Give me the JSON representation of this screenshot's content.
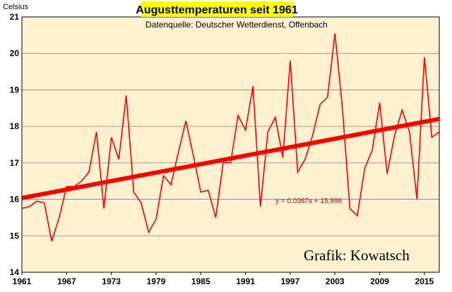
{
  "chart_data": {
    "type": "line",
    "title": "Augusttemperaturen seit 1961",
    "subtitle": "Datenquelle: Deutscher Wetterdienst, Offenbach",
    "ylabel": "Celsius",
    "credit": "Grafik: Kowatsch",
    "xlim": [
      1961,
      2017
    ],
    "ylim": [
      14,
      21
    ],
    "x_ticks": [
      "1961",
      "1967",
      "1973",
      "1979",
      "1985",
      "1991",
      "1997",
      "2003",
      "2009",
      "2015"
    ],
    "y_ticks": [
      "14",
      "15",
      "16",
      "17",
      "18",
      "19",
      "20",
      "21"
    ],
    "grid": true,
    "x": [
      1961,
      1962,
      1963,
      1964,
      1965,
      1966,
      1967,
      1968,
      1969,
      1970,
      1971,
      1972,
      1973,
      1974,
      1975,
      1976,
      1977,
      1978,
      1979,
      1980,
      1981,
      1982,
      1983,
      1984,
      1985,
      1986,
      1987,
      1988,
      1989,
      1990,
      1991,
      1992,
      1993,
      1994,
      1995,
      1996,
      1997,
      1998,
      1999,
      2000,
      2001,
      2002,
      2003,
      2004,
      2005,
      2006,
      2007,
      2008,
      2009,
      2010,
      2011,
      2012,
      2013,
      2014,
      2015,
      2016,
      2017
    ],
    "series": [
      {
        "values": [
          15.75,
          15.8,
          15.95,
          15.9,
          14.85,
          15.5,
          16.35,
          16.35,
          16.5,
          16.75,
          17.85,
          15.75,
          17.7,
          17.1,
          18.85,
          16.2,
          15.9,
          15.1,
          15.45,
          16.65,
          16.4,
          17.3,
          18.15,
          17.2,
          16.2,
          16.25,
          15.5,
          17.0,
          17.0,
          18.3,
          17.9,
          19.1,
          15.8,
          17.85,
          18.25,
          17.15,
          19.8,
          16.75,
          17.1,
          17.75,
          18.6,
          18.8,
          20.55,
          18.5,
          15.75,
          15.55,
          16.85,
          17.35,
          18.65,
          16.7,
          17.75,
          18.45,
          17.85,
          16.0,
          19.9,
          17.7,
          17.85
        ]
      }
    ],
    "trend": {
      "equation": "y = 0,0387x + 15,998",
      "slope": 0.0387,
      "intercept": 15.998
    },
    "colors": {
      "plot_background": "#fdf1d0",
      "line": "#ff0000",
      "trend": "#ff0000",
      "title_highlight": "#ffff00",
      "grid": "#808080"
    }
  }
}
